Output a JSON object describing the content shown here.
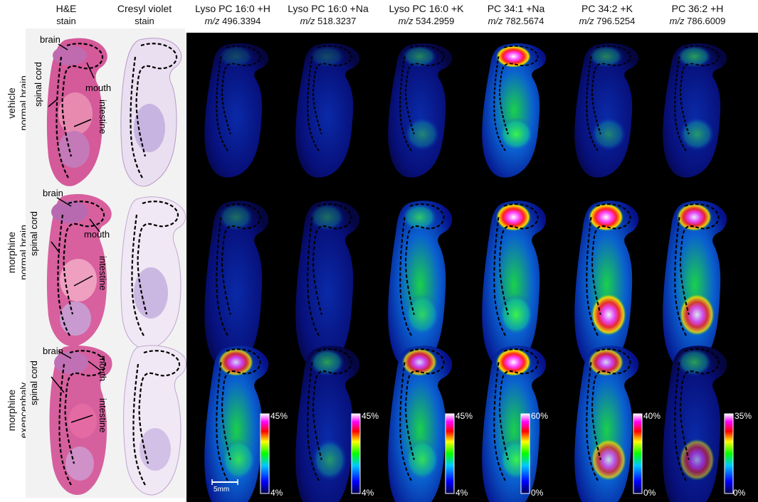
{
  "headers": [
    {
      "title": "H&E",
      "subtitle": "stain"
    },
    {
      "title": "Cresyl violet",
      "subtitle": "stain"
    },
    {
      "title": "Lyso PC 16:0 +H",
      "mz_prefix": "m/z",
      "mz": "496.3394"
    },
    {
      "title": "Lyso PC 16:0 +Na",
      "mz_prefix": "m/z",
      "mz": "518.3237"
    },
    {
      "title": "Lyso PC 16:0 +K",
      "mz_prefix": "m/z",
      "mz": "534.2959"
    },
    {
      "title": "PC 34:1 +Na",
      "mz_prefix": "m/z",
      "mz": "782.5674"
    },
    {
      "title": "PC 34:2 +K",
      "mz_prefix": "m/z",
      "mz": "796.5254"
    },
    {
      "title": "PC 36:2 +H",
      "mz_prefix": "m/z",
      "mz": "786.6009"
    }
  ],
  "rows": [
    {
      "line1": "vehicle",
      "line2": "normal brain"
    },
    {
      "line1": "morphine",
      "line2": "normal brain"
    },
    {
      "line1": "morphine",
      "line2": "exencephaly"
    }
  ],
  "annotations": {
    "brain": "brain",
    "mouth": "mouth",
    "spinal_cord": "spinal cord",
    "intestine": "intestine"
  },
  "scale_bar": "5mm",
  "colorbars": [
    {
      "max": "45%",
      "min": "4%"
    },
    {
      "max": "45%",
      "min": "4%"
    },
    {
      "max": "45%",
      "min": "4%"
    },
    {
      "max": "60%",
      "min": "0%"
    },
    {
      "max": "40%",
      "min": "0%"
    },
    {
      "max": "35%",
      "min": "0%"
    }
  ]
}
